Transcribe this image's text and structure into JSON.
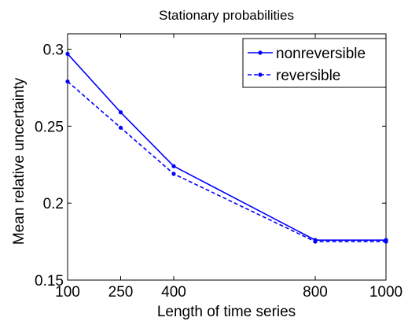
{
  "chart_data": {
    "type": "line",
    "title": "Stationary probabilities",
    "xlabel": "Length of time series",
    "ylabel": "Mean relative uncertainty",
    "x": [
      100,
      250,
      400,
      800,
      1000
    ],
    "xticks": [
      "100",
      "250",
      "400",
      "800",
      "1000"
    ],
    "yticks": [
      "0.15",
      "0.2",
      "0.25",
      "0.3"
    ],
    "ytick_values": [
      0.15,
      0.2,
      0.25,
      0.3
    ],
    "xlim": [
      100,
      1000
    ],
    "ylim": [
      0.15,
      0.31
    ],
    "grid": false,
    "legend_position": "top-right",
    "series": [
      {
        "name": "nonreversible",
        "values": [
          0.297,
          0.259,
          0.224,
          0.176,
          0.176
        ],
        "line_style": "solid",
        "marker": "dot",
        "color": "#0000ff"
      },
      {
        "name": "reversible",
        "values": [
          0.279,
          0.249,
          0.219,
          0.175,
          0.175
        ],
        "line_style": "dashed",
        "marker": "dot",
        "color": "#0000ff"
      }
    ]
  }
}
